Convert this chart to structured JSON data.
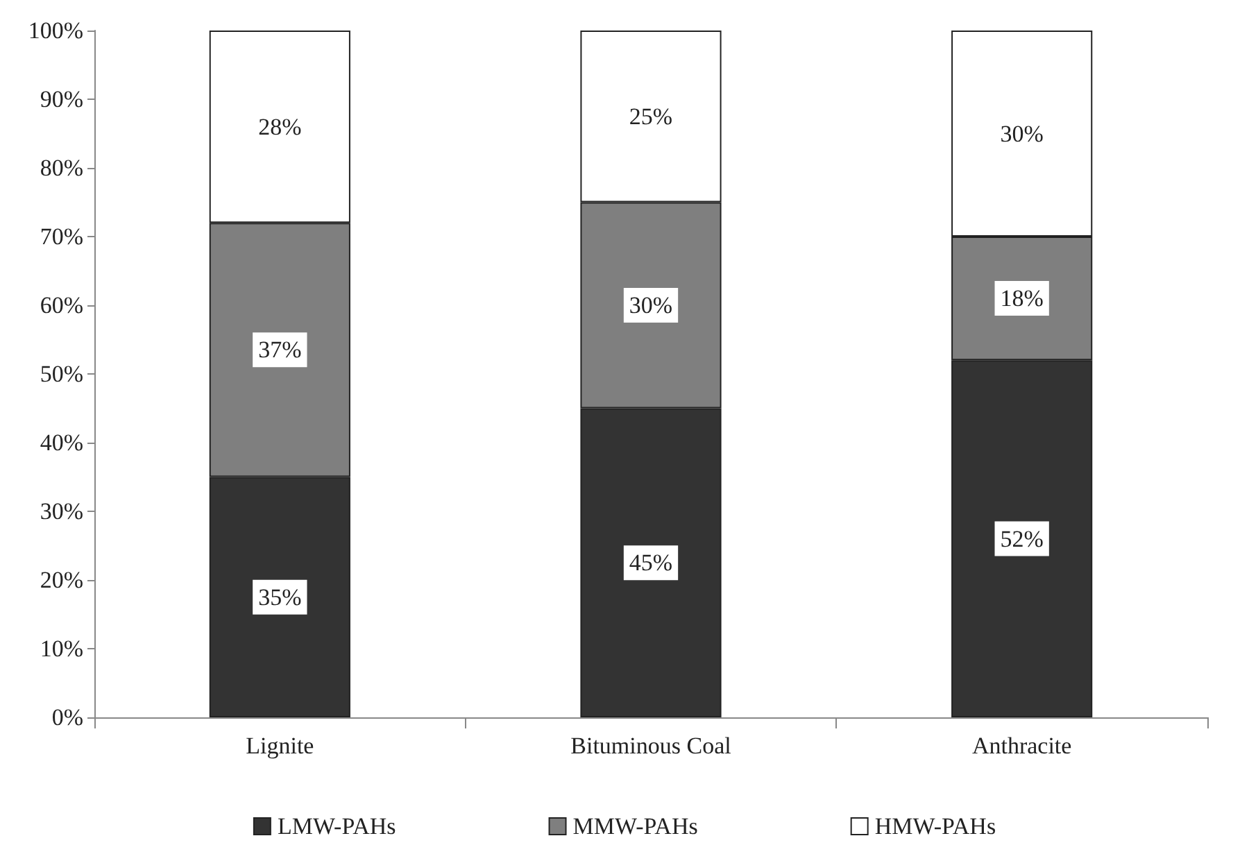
{
  "chart_data": {
    "type": "bar",
    "stacked": true,
    "categories": [
      "Lignite",
      "Bituminous Coal",
      "Anthracite"
    ],
    "series": [
      {
        "name": "LMW-PAHs",
        "color": "#333333",
        "values": [
          35,
          45,
          52
        ],
        "value_labels": [
          "35%",
          "45%",
          "52%"
        ]
      },
      {
        "name": "MMW-PAHs",
        "color": "#7f7f7f",
        "values": [
          37,
          30,
          18
        ],
        "value_labels": [
          "37%",
          "30%",
          "18%"
        ]
      },
      {
        "name": "HMW-PAHs",
        "color": "#ffffff",
        "values": [
          28,
          25,
          30
        ],
        "value_labels": [
          "28%",
          "25%",
          "30%"
        ]
      }
    ],
    "ylim": [
      0,
      100
    ],
    "yticks": [
      {
        "value": 0,
        "label": "0%"
      },
      {
        "value": 10,
        "label": "10%"
      },
      {
        "value": 20,
        "label": "20%"
      },
      {
        "value": 30,
        "label": "30%"
      },
      {
        "value": 40,
        "label": "40%"
      },
      {
        "value": 50,
        "label": "50%"
      },
      {
        "value": 60,
        "label": "60%"
      },
      {
        "value": 70,
        "label": "70%"
      },
      {
        "value": 80,
        "label": "80%"
      },
      {
        "value": 90,
        "label": "90%"
      },
      {
        "value": 100,
        "label": "100%"
      }
    ],
    "grid": false,
    "legend": "bottom"
  }
}
